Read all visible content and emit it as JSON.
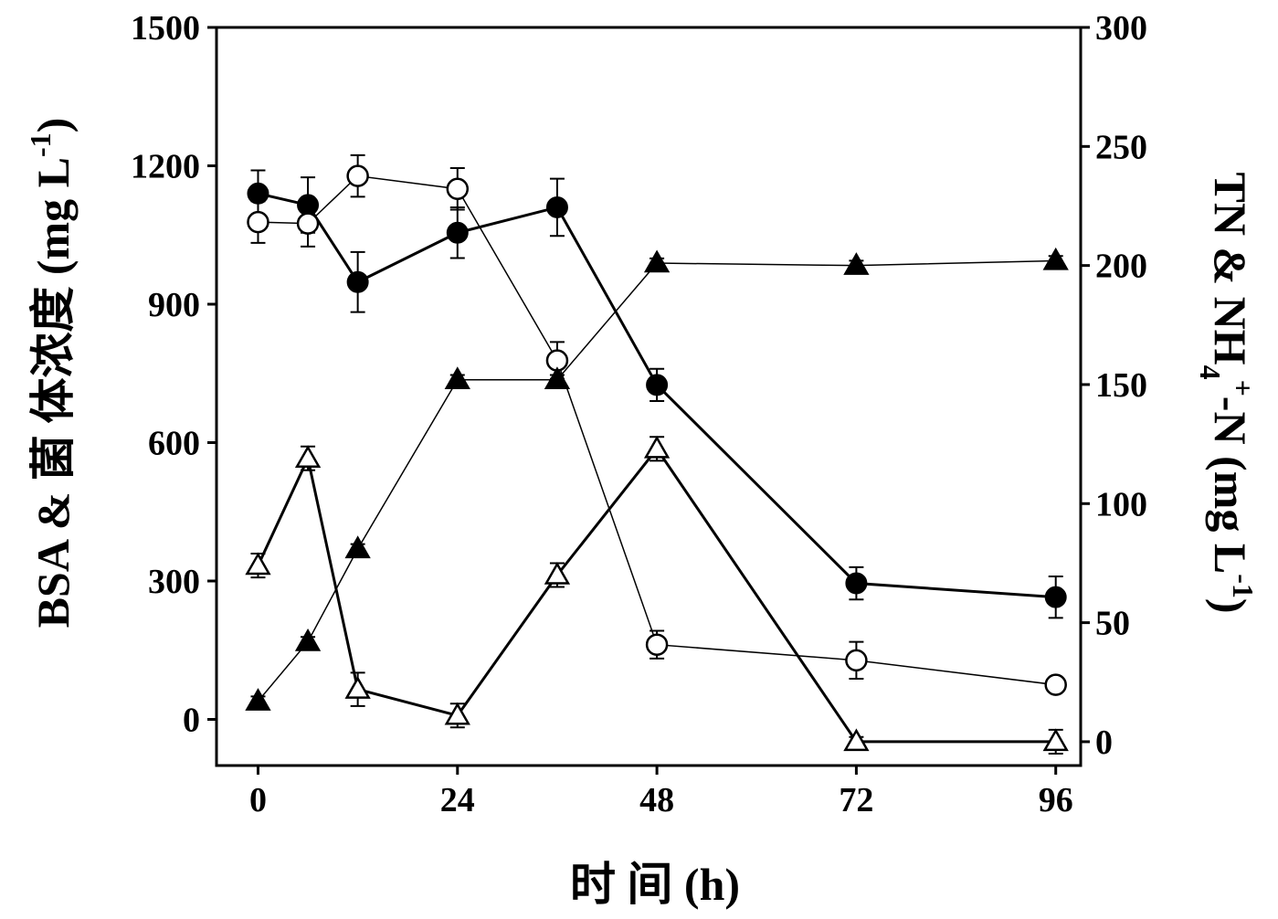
{
  "chart_data": {
    "type": "line",
    "x_axis": {
      "label": "时 间 (h)",
      "ticks": [
        0,
        24,
        48,
        72,
        96
      ],
      "range": [
        -5,
        99
      ]
    },
    "y_axis_left": {
      "label_main": "BSA & 菌 体浓度 (mg L",
      "label_sup": "-1",
      "label_end": ")",
      "ticks": [
        0,
        300,
        600,
        900,
        1200,
        1500
      ],
      "range": [
        -100,
        1500
      ]
    },
    "y_axis_right": {
      "label_parts": [
        {
          "text": "TN & NH",
          "shift": "base"
        },
        {
          "text": "4",
          "shift": "sub"
        },
        {
          "text": "+",
          "shift": "super"
        },
        {
          "text": "-N (mg L",
          "shift": "base"
        },
        {
          "text": "-1",
          "shift": "super"
        },
        {
          "text": ")",
          "shift": "base"
        }
      ],
      "ticks": [
        0,
        50,
        100,
        150,
        200,
        250,
        300
      ],
      "range": [
        -10,
        300
      ]
    },
    "series": [
      {
        "marker": "filled-circle",
        "axis": "left",
        "stroke_width": 3,
        "x": [
          0,
          6,
          12,
          24,
          36,
          48,
          72,
          96
        ],
        "y": [
          1140,
          1115,
          948,
          1055,
          1110,
          725,
          295,
          265
        ],
        "err": [
          50,
          60,
          65,
          55,
          62,
          35,
          35,
          45
        ]
      },
      {
        "marker": "open-circle",
        "axis": "left",
        "stroke_width": 1.5,
        "x": [
          0,
          6,
          12,
          24,
          36,
          48,
          72,
          96
        ],
        "y": [
          1078,
          1075,
          1178,
          1150,
          778,
          162,
          128,
          75
        ],
        "err": [
          45,
          50,
          45,
          45,
          40,
          30,
          40,
          8
        ]
      },
      {
        "marker": "filled-triangle",
        "axis": "right",
        "stroke_width": 1.5,
        "x": [
          0,
          6,
          12,
          24,
          36,
          48,
          72,
          96
        ],
        "y": [
          17,
          42,
          81,
          152,
          152,
          201,
          200,
          202
        ],
        "err": [
          2,
          2,
          2,
          2,
          2,
          2,
          2,
          2
        ]
      },
      {
        "marker": "open-triangle",
        "axis": "right",
        "stroke_width": 3,
        "x": [
          0,
          6,
          12,
          24,
          36,
          48,
          72,
          96
        ],
        "y": [
          74,
          119,
          22,
          11,
          70,
          123,
          0,
          0
        ],
        "err": [
          5,
          5,
          7,
          5,
          5,
          5,
          2,
          5
        ]
      }
    ]
  }
}
